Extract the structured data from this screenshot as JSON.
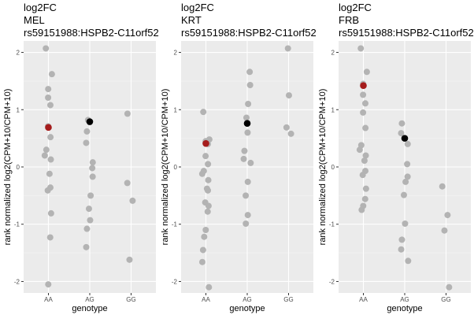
{
  "chart_data": [
    {
      "type": "scatter",
      "title": [
        "log2FC",
        "MEL",
        "rs59151988:HSPB2-C11orf52"
      ],
      "xlabel": "genotype",
      "ylabel": "rank normalized log2(CPM+10/CPM+10)",
      "categories": [
        "AA",
        "AG",
        "GG"
      ],
      "ylim": [
        -2.2,
        2.2
      ],
      "yticks": [
        -2,
        -1,
        0,
        1,
        2
      ],
      "colors": {
        "points": "#b3b3b3",
        "median": "#000000",
        "highlight": "#a51c1c"
      },
      "points": [
        {
          "x": "AA",
          "y": 2.07
        },
        {
          "x": "AA",
          "y": 1.62
        },
        {
          "x": "AA",
          "y": 1.36
        },
        {
          "x": "AA",
          "y": 1.21
        },
        {
          "x": "AA",
          "y": 1.08
        },
        {
          "x": "AA",
          "y": 0.71
        },
        {
          "x": "AA",
          "y": 0.52
        },
        {
          "x": "AA",
          "y": 0.3
        },
        {
          "x": "AA",
          "y": 0.2
        },
        {
          "x": "AA",
          "y": 0.13
        },
        {
          "x": "AA",
          "y": -0.12
        },
        {
          "x": "AA",
          "y": -0.36
        },
        {
          "x": "AA",
          "y": -0.41
        },
        {
          "x": "AA",
          "y": -0.81
        },
        {
          "x": "AA",
          "y": -1.23
        },
        {
          "x": "AA",
          "y": -2.05
        },
        {
          "x": "AG",
          "y": 0.82
        },
        {
          "x": "AG",
          "y": 0.62
        },
        {
          "x": "AG",
          "y": 0.42
        },
        {
          "x": "AG",
          "y": 0.08
        },
        {
          "x": "AG",
          "y": -0.02
        },
        {
          "x": "AG",
          "y": -0.17
        },
        {
          "x": "AG",
          "y": -0.5
        },
        {
          "x": "AG",
          "y": -0.73
        },
        {
          "x": "AG",
          "y": -0.93
        },
        {
          "x": "AG",
          "y": -1.08
        },
        {
          "x": "AG",
          "y": -1.4
        },
        {
          "x": "GG",
          "y": 0.93
        },
        {
          "x": "GG",
          "y": -0.28
        },
        {
          "x": "GG",
          "y": -0.59
        },
        {
          "x": "GG",
          "y": -1.62
        }
      ],
      "highlight": {
        "x": "AA",
        "y": 0.69
      },
      "median": {
        "x": "AG",
        "y": 0.79
      }
    },
    {
      "type": "scatter",
      "title": [
        "log2FC",
        "KRT",
        "rs59151988:HSPB2-C11orf52"
      ],
      "xlabel": "genotype",
      "ylabel": "rank normalized log2(CPM+10/CPM+10)",
      "categories": [
        "AA",
        "AG",
        "GG"
      ],
      "ylim": [
        -2.2,
        2.2
      ],
      "yticks": [
        -2,
        -1,
        0,
        1,
        2
      ],
      "colors": {
        "points": "#b3b3b3",
        "median": "#000000",
        "highlight": "#a51c1c"
      },
      "points": [
        {
          "x": "AA",
          "y": 0.96
        },
        {
          "x": "AA",
          "y": 0.48
        },
        {
          "x": "AA",
          "y": 0.45
        },
        {
          "x": "AA",
          "y": 0.43
        },
        {
          "x": "AA",
          "y": 0.4
        },
        {
          "x": "AA",
          "y": 0.19
        },
        {
          "x": "AA",
          "y": 0.05
        },
        {
          "x": "AA",
          "y": -0.07
        },
        {
          "x": "AA",
          "y": -0.12
        },
        {
          "x": "AA",
          "y": -0.23
        },
        {
          "x": "AA",
          "y": -0.38
        },
        {
          "x": "AA",
          "y": -0.41
        },
        {
          "x": "AA",
          "y": -0.62
        },
        {
          "x": "AA",
          "y": -0.68
        },
        {
          "x": "AA",
          "y": -0.78
        },
        {
          "x": "AA",
          "y": -1.1
        },
        {
          "x": "AA",
          "y": -1.22
        },
        {
          "x": "AA",
          "y": -1.45
        },
        {
          "x": "AA",
          "y": -1.66
        },
        {
          "x": "AA",
          "y": -2.1
        },
        {
          "x": "AG",
          "y": 1.66
        },
        {
          "x": "AG",
          "y": 1.43
        },
        {
          "x": "AG",
          "y": 1.1
        },
        {
          "x": "AG",
          "y": 0.86
        },
        {
          "x": "AG",
          "y": 0.6
        },
        {
          "x": "AG",
          "y": 0.28
        },
        {
          "x": "AG",
          "y": 0.14
        },
        {
          "x": "AG",
          "y": 0.07
        },
        {
          "x": "AG",
          "y": -0.26
        },
        {
          "x": "AG",
          "y": -0.5
        },
        {
          "x": "AG",
          "y": -0.84
        },
        {
          "x": "AG",
          "y": -0.99
        },
        {
          "x": "GG",
          "y": 2.07
        },
        {
          "x": "GG",
          "y": 1.25
        },
        {
          "x": "GG",
          "y": 0.69
        },
        {
          "x": "GG",
          "y": 0.58
        }
      ],
      "highlight": {
        "x": "AA",
        "y": 0.41
      },
      "median": {
        "x": "AG",
        "y": 0.76
      }
    },
    {
      "type": "scatter",
      "title": [
        "log2FC",
        "FRB",
        "rs59151988:HSPB2-C11orf52"
      ],
      "xlabel": "genotype",
      "ylabel": "rank normalized log2(CPM+10/CPM+10)",
      "categories": [
        "AA",
        "AG",
        "GG"
      ],
      "ylim": [
        -2.2,
        2.2
      ],
      "yticks": [
        -2,
        -1,
        0,
        1,
        2
      ],
      "colors": {
        "points": "#b3b3b3",
        "median": "#000000",
        "highlight": "#a51c1c"
      },
      "points": [
        {
          "x": "AA",
          "y": 2.07
        },
        {
          "x": "AA",
          "y": 1.66
        },
        {
          "x": "AA",
          "y": 1.45
        },
        {
          "x": "AA",
          "y": 1.26
        },
        {
          "x": "AA",
          "y": 1.11
        },
        {
          "x": "AA",
          "y": 0.95
        },
        {
          "x": "AA",
          "y": 0.68
        },
        {
          "x": "AA",
          "y": 0.38
        },
        {
          "x": "AA",
          "y": 0.3
        },
        {
          "x": "AA",
          "y": 0.2
        },
        {
          "x": "AA",
          "y": 0.11
        },
        {
          "x": "AA",
          "y": -0.07
        },
        {
          "x": "AA",
          "y": -0.14
        },
        {
          "x": "AA",
          "y": -0.38
        },
        {
          "x": "AA",
          "y": -0.56
        },
        {
          "x": "AA",
          "y": -0.68
        },
        {
          "x": "AA",
          "y": -0.75
        },
        {
          "x": "AG",
          "y": 0.76
        },
        {
          "x": "AG",
          "y": 0.59
        },
        {
          "x": "AG",
          "y": 0.4
        },
        {
          "x": "AG",
          "y": 0.05
        },
        {
          "x": "AG",
          "y": -0.17
        },
        {
          "x": "AG",
          "y": -0.26
        },
        {
          "x": "AG",
          "y": -0.49
        },
        {
          "x": "AG",
          "y": -0.99
        },
        {
          "x": "AG",
          "y": -1.27
        },
        {
          "x": "AG",
          "y": -1.44
        },
        {
          "x": "AG",
          "y": -1.64
        },
        {
          "x": "GG",
          "y": -0.34
        },
        {
          "x": "GG",
          "y": -0.84
        },
        {
          "x": "GG",
          "y": -1.11
        },
        {
          "x": "GG",
          "y": -2.1
        }
      ],
      "highlight": {
        "x": "AA",
        "y": 1.42
      },
      "median": {
        "x": "AG",
        "y": 0.5
      }
    }
  ]
}
